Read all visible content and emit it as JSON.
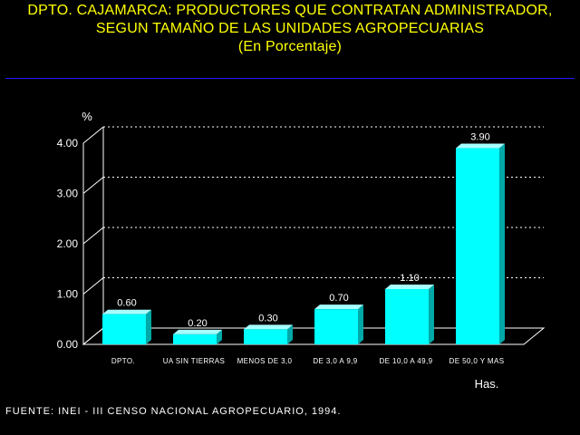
{
  "title": {
    "line1": "DPTO. CAJAMARCA: PRODUCTORES QUE CONTRATAN ADMINISTRADOR,",
    "line2": "SEGUN TAMAÑO DE LAS UNIDADES AGROPECUARIAS",
    "line3": "(En Porcentaje)"
  },
  "source": "FUENTE: INEI - III CENSO NACIONAL AGROPECUARIO, 1994.",
  "colors": {
    "background": "#000000",
    "title": "#ffff00",
    "bar_front": "#00ffff",
    "bar_side": "#00a8a8",
    "bar_top": "#a8ffff",
    "text": "#ffffff"
  },
  "chart_data": {
    "type": "bar",
    "categories": [
      "DPTO.",
      "UA SIN TIERRAS",
      "MENOS DE 3,0",
      "DE 3,0 A 9,9",
      "DE 10,0 A 49,9",
      "DE 50,0 Y MAS"
    ],
    "values": [
      0.6,
      0.2,
      0.3,
      0.7,
      1.1,
      3.9
    ],
    "value_labels": [
      "0.60",
      "0.20",
      "0.30",
      "0.70",
      "1.10",
      "3.90"
    ],
    "ylabel": "%",
    "xlabel": "Has.",
    "ylim": [
      0,
      4
    ],
    "yticks": [
      0,
      1,
      2,
      3,
      4
    ],
    "ytick_labels": [
      "0.00",
      "1.00",
      "2.00",
      "3.00",
      "4.00"
    ],
    "grid": true,
    "style": "3d"
  }
}
